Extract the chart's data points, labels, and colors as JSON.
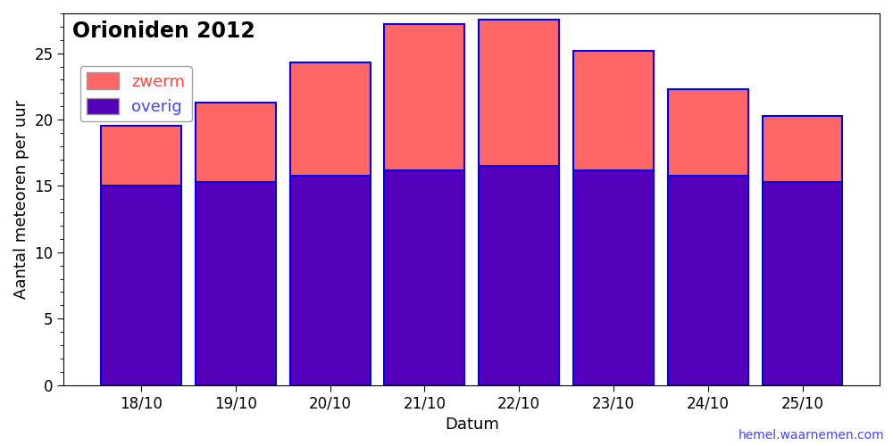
{
  "categories": [
    "18/10",
    "19/10",
    "20/10",
    "21/10",
    "22/10",
    "23/10",
    "24/10",
    "25/10"
  ],
  "overig": [
    15.0,
    15.3,
    15.8,
    16.2,
    16.5,
    16.2,
    15.8,
    15.3
  ],
  "zwerm": [
    4.5,
    6.0,
    8.5,
    11.0,
    11.0,
    9.0,
    6.5,
    5.0
  ],
  "zwerm_color": "#FF6666",
  "overig_color": "#5500BB",
  "bar_edge_color": "#0000EE",
  "title": "Orioniden 2012",
  "xlabel": "Datum",
  "ylabel": "Aantal meteoren per uur",
  "ylim": [
    0,
    28
  ],
  "yticks": [
    0,
    5,
    10,
    15,
    20,
    25
  ],
  "legend_zwerm": "zwerm",
  "legend_overig": "overig",
  "zwerm_label_color": "#FF4444",
  "overig_label_color": "#4444FF",
  "title_fontsize": 17,
  "axis_fontsize": 13,
  "tick_fontsize": 12,
  "watermark": "hemel.waarnemen.com",
  "watermark_color": "#4444FF",
  "background_color": "#FFFFFF",
  "bar_width": 0.85
}
